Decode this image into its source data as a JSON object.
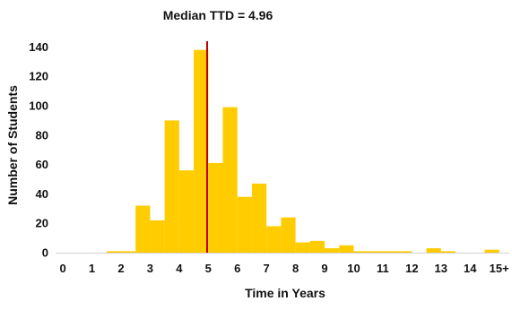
{
  "chart_data": {
    "type": "bar",
    "title": "",
    "annotation": "Median TTD = 4.96",
    "xlabel": "Time in Years",
    "ylabel": "Number of Students",
    "bar_color": "#FFCC00",
    "median_line_color": "#C00000",
    "median_value": 4.96,
    "bin_width": 0.5,
    "x_ticks": [
      "0",
      "1",
      "2",
      "3",
      "4",
      "5",
      "6",
      "7",
      "8",
      "9",
      "10",
      "11",
      "12",
      "13",
      "14",
      "15+"
    ],
    "y_ticks": [
      0,
      20,
      40,
      60,
      80,
      100,
      120,
      140
    ],
    "ylim": [
      0,
      150
    ],
    "xlim": [
      -0.25,
      15.35
    ],
    "grid": false,
    "bins": [
      {
        "x": 1.75,
        "value": 1
      },
      {
        "x": 2.25,
        "value": 1
      },
      {
        "x": 2.75,
        "value": 32
      },
      {
        "x": 3.25,
        "value": 22
      },
      {
        "x": 3.75,
        "value": 90
      },
      {
        "x": 4.25,
        "value": 56
      },
      {
        "x": 4.75,
        "value": 138
      },
      {
        "x": 5.25,
        "value": 61
      },
      {
        "x": 5.75,
        "value": 99
      },
      {
        "x": 6.25,
        "value": 38
      },
      {
        "x": 6.75,
        "value": 47
      },
      {
        "x": 7.25,
        "value": 18
      },
      {
        "x": 7.75,
        "value": 24
      },
      {
        "x": 8.25,
        "value": 7
      },
      {
        "x": 8.75,
        "value": 8
      },
      {
        "x": 9.25,
        "value": 3
      },
      {
        "x": 9.75,
        "value": 5
      },
      {
        "x": 10.25,
        "value": 1
      },
      {
        "x": 10.75,
        "value": 1
      },
      {
        "x": 11.25,
        "value": 1
      },
      {
        "x": 11.75,
        "value": 1
      },
      {
        "x": 12.75,
        "value": 3
      },
      {
        "x": 13.25,
        "value": 1
      },
      {
        "x": 14.75,
        "value": 2
      }
    ]
  }
}
